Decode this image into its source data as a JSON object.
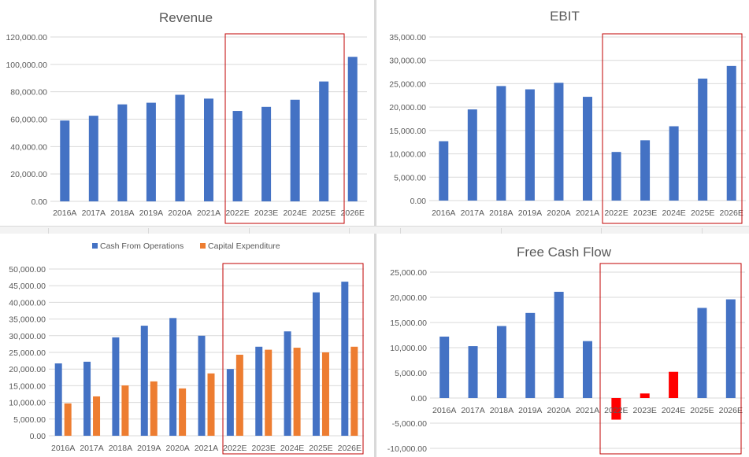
{
  "colors": {
    "blue": "#4472c4",
    "orange": "#ed7d31",
    "red": "#ff0000",
    "grid": "#d9d9d9",
    "highlight_box": "#c00000"
  },
  "chart_data": [
    {
      "type": "bar",
      "title": "Revenue",
      "categories": [
        "2016A",
        "2017A",
        "2018A",
        "2019A",
        "2020A",
        "2021A",
        "2022E",
        "2023E",
        "2024E",
        "2025E",
        "2026E"
      ],
      "series": [
        {
          "values": [
            59000,
            62500,
            70800,
            72000,
            77800,
            75000,
            66000,
            69000,
            74200,
            87500,
            105500
          ],
          "color": "#4472c4"
        }
      ],
      "ylim": [
        0,
        120000
      ],
      "yticks": [
        0,
        20000,
        40000,
        60000,
        80000,
        100000,
        120000
      ],
      "ytick_labels": [
        "0.00",
        "20,000.00",
        "40,000.00",
        "60,000.00",
        "80,000.00",
        "100,000.00",
        "120,000.00"
      ],
      "grid": true,
      "highlight_from": "2022E"
    },
    {
      "type": "bar",
      "title": "EBIT",
      "categories": [
        "2016A",
        "2017A",
        "2018A",
        "2019A",
        "2020A",
        "2021A",
        "2022E",
        "2023E",
        "2024E",
        "2025E",
        "2026E"
      ],
      "series": [
        {
          "values": [
            12700,
            19500,
            24500,
            23800,
            25200,
            22200,
            10400,
            12900,
            15900,
            26100,
            28800
          ],
          "color": "#4472c4"
        }
      ],
      "ylim": [
        0,
        35000
      ],
      "yticks": [
        0,
        5000,
        10000,
        15000,
        20000,
        25000,
        30000,
        35000
      ],
      "ytick_labels": [
        "0.00",
        "5,000.00",
        "10,000.00",
        "15,000.00",
        "20,000.00",
        "25,000.00",
        "30,000.00",
        "35,000.00"
      ],
      "grid": true,
      "highlight_from": "2022E"
    },
    {
      "type": "bar",
      "title": "",
      "categories": [
        "2016A",
        "2017A",
        "2018A",
        "2019A",
        "2020A",
        "2021A",
        "2022E",
        "2023E",
        "2024E",
        "2025E",
        "2026E"
      ],
      "series": [
        {
          "name": "Cash From Operations",
          "values": [
            21700,
            22200,
            29500,
            33000,
            35300,
            30000,
            20000,
            26700,
            31300,
            43000,
            46200
          ],
          "color": "#4472c4"
        },
        {
          "name": "Capital Expenditure",
          "values": [
            9700,
            11800,
            15100,
            16300,
            14200,
            18700,
            24300,
            25800,
            26400,
            25000,
            26700
          ],
          "color": "#ed7d31"
        }
      ],
      "ylim": [
        0,
        50000
      ],
      "yticks": [
        0,
        5000,
        10000,
        15000,
        20000,
        25000,
        30000,
        35000,
        40000,
        45000,
        50000
      ],
      "ytick_labels": [
        "0.00",
        "5,000.00",
        "10,000.00",
        "15,000.00",
        "20,000.00",
        "25,000.00",
        "30,000.00",
        "35,000.00",
        "40,000.00",
        "45,000.00",
        "50,000.00"
      ],
      "grid": true,
      "legend": "top-center",
      "highlight_from": "2022E"
    },
    {
      "type": "bar",
      "title": "Free Cash Flow",
      "categories": [
        "2016A",
        "2017A",
        "2018A",
        "2019A",
        "2020A",
        "2021A",
        "2022E",
        "2023E",
        "2024E",
        "2025E",
        "2026E"
      ],
      "series": [
        {
          "values": [
            12200,
            10300,
            14300,
            16900,
            21100,
            11300,
            -4300,
            900,
            5200,
            17900,
            19600
          ],
          "colors": [
            "#4472c4",
            "#4472c4",
            "#4472c4",
            "#4472c4",
            "#4472c4",
            "#4472c4",
            "#ff0000",
            "#ff0000",
            "#ff0000",
            "#4472c4",
            "#4472c4"
          ]
        }
      ],
      "ylim": [
        -10000,
        25000
      ],
      "yticks": [
        -10000,
        -5000,
        0,
        5000,
        10000,
        15000,
        20000,
        25000
      ],
      "ytick_labels": [
        "-10,000.00",
        "-5,000.00",
        "0.00",
        "5,000.00",
        "10,000.00",
        "15,000.00",
        "20,000.00",
        "25,000.00"
      ],
      "grid": true,
      "highlight_from": "2022E"
    }
  ]
}
